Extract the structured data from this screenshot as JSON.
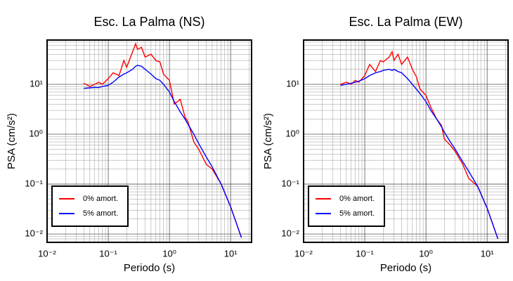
{
  "chart_data": [
    {
      "type": "line",
      "title": "Esc. La Palma (NS)",
      "xlabel": "Periodo (s)",
      "ylabel": "PSA (cm/s²)",
      "log_x": true,
      "log_y": true,
      "grid": true,
      "legend": "lower left",
      "xlim": [
        0.01,
        22
      ],
      "ylim": [
        0.0068,
        77
      ],
      "xticks": [
        {
          "value": 0.01,
          "label": "10⁻²"
        },
        {
          "value": 0.1,
          "label": "10⁻¹"
        },
        {
          "value": 1,
          "label": "10⁰"
        },
        {
          "value": 10,
          "label": "10¹"
        }
      ],
      "yticks": [
        {
          "value": 0.01,
          "label": "10⁻²"
        },
        {
          "value": 0.1,
          "label": "10⁻¹"
        },
        {
          "value": 1,
          "label": "10⁰"
        },
        {
          "value": 10,
          "label": "10¹"
        }
      ],
      "x": [
        0.04,
        0.05,
        0.06,
        0.07,
        0.08,
        0.1,
        0.12,
        0.15,
        0.18,
        0.2,
        0.25,
        0.28,
        0.3,
        0.35,
        0.4,
        0.5,
        0.6,
        0.7,
        0.8,
        1,
        1.2,
        1.5,
        1.8,
        2,
        2.5,
        3,
        4,
        5,
        7,
        10,
        15
      ],
      "series": [
        {
          "name": "0% amort.",
          "color": "#ff0000",
          "values": [
            10.5,
            9,
            10,
            11,
            10,
            13,
            17,
            15,
            30,
            22,
            45,
            65,
            50,
            55,
            35,
            40,
            30,
            28,
            16,
            12,
            4,
            5,
            2.2,
            1.8,
            0.7,
            0.5,
            0.25,
            0.2,
            0.1,
            0.035,
            0.0085
          ]
        },
        {
          "name": "5% amort.",
          "color": "#0000ff",
          "values": [
            8.3,
            8.5,
            8.7,
            8.6,
            9,
            9.5,
            11,
            14,
            16,
            17,
            20,
            23,
            24,
            23,
            20,
            16,
            13,
            12,
            10,
            7,
            4.5,
            2.8,
            2,
            1.6,
            1,
            0.65,
            0.35,
            0.22,
            0.1,
            0.035,
            0.0085
          ]
        }
      ]
    },
    {
      "type": "line",
      "title": "Esc. La Palma (EW)",
      "xlabel": "Periodo (s)",
      "ylabel": "PSA (cm/s²)",
      "log_x": true,
      "log_y": true,
      "grid": true,
      "legend": "lower left",
      "xlim": [
        0.01,
        22
      ],
      "ylim": [
        0.0068,
        77
      ],
      "xticks": [
        {
          "value": 0.01,
          "label": "10⁻²"
        },
        {
          "value": 0.1,
          "label": "10⁻¹"
        },
        {
          "value": 1,
          "label": "10⁰"
        },
        {
          "value": 10,
          "label": "10¹"
        }
      ],
      "yticks": [
        {
          "value": 0.01,
          "label": "10⁻²"
        },
        {
          "value": 0.1,
          "label": "10⁻¹"
        },
        {
          "value": 1,
          "label": "10⁰"
        },
        {
          "value": 10,
          "label": "10¹"
        }
      ],
      "x": [
        0.04,
        0.05,
        0.06,
        0.07,
        0.08,
        0.1,
        0.12,
        0.15,
        0.18,
        0.2,
        0.25,
        0.28,
        0.3,
        0.35,
        0.4,
        0.5,
        0.6,
        0.7,
        0.8,
        1,
        1.2,
        1.5,
        1.8,
        2,
        2.5,
        3,
        4,
        5,
        7,
        10,
        15
      ],
      "series": [
        {
          "name": "0% amort.",
          "color": "#ff0000",
          "values": [
            10,
            11,
            10,
            12,
            11,
            15,
            25,
            18,
            30,
            28,
            35,
            45,
            30,
            40,
            25,
            35,
            20,
            14,
            8,
            6,
            3.5,
            2,
            1.5,
            0.8,
            0.6,
            0.45,
            0.25,
            0.13,
            0.09,
            0.033,
            0.008
          ]
        },
        {
          "name": "5% amort.",
          "color": "#0000ff",
          "values": [
            9.5,
            10,
            10.5,
            11,
            11.5,
            13,
            15,
            17,
            18,
            19,
            20,
            19,
            20,
            18,
            17,
            13,
            10,
            8,
            6.5,
            4.5,
            3,
            2,
            1.4,
            1.1,
            0.7,
            0.5,
            0.28,
            0.18,
            0.09,
            0.033,
            0.008
          ]
        }
      ]
    }
  ]
}
